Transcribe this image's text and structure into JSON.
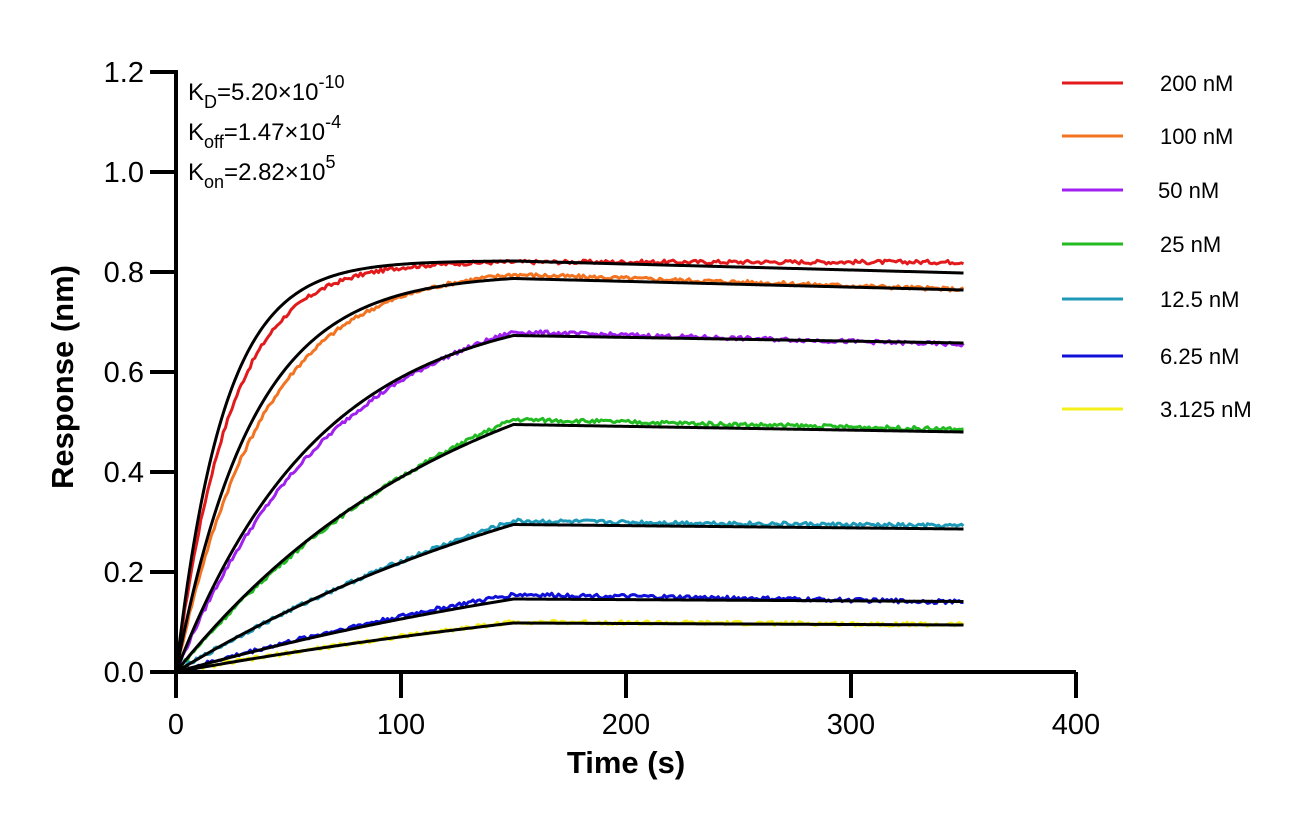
{
  "chart_data": {
    "type": "line",
    "xlabel": "Time (s)",
    "ylabel": "Response (nm)",
    "xlim": [
      0,
      400
    ],
    "ylim": [
      0,
      1.2
    ],
    "x_ticks": [
      0,
      100,
      200,
      300,
      400
    ],
    "y_ticks": [
      0.0,
      0.2,
      0.4,
      0.6,
      0.8,
      1.0,
      1.2
    ],
    "y_tick_labels": [
      "0.0",
      "0.2",
      "0.4",
      "0.6",
      "0.8",
      "1.0",
      "1.2"
    ],
    "x_tick_labels": [
      "0",
      "100",
      "200",
      "300",
      "400"
    ],
    "grid": false,
    "legend_position": "right",
    "annotations": {
      "kd": {
        "base": "K",
        "sub": "D",
        "value": "=5.20×10",
        "exp": "-10"
      },
      "koff": {
        "base": "K",
        "sub": "off",
        "value": "=1.47×10",
        "exp": "-4"
      },
      "kon": {
        "base": "K",
        "sub": "on",
        "value": "=2.82×10",
        "exp": "5"
      }
    },
    "association_end": 150,
    "dissociation_end": 350,
    "fit_color": "#000000",
    "series": [
      {
        "name": "200 nM",
        "color": "#e31a1c",
        "plateau": 0.82,
        "end_value": 0.82,
        "fit_plateau": 0.822,
        "fit_end": 0.798
      },
      {
        "name": "100 nM",
        "color": "#f47320",
        "plateau": 0.795,
        "end_value": 0.765,
        "fit_plateau": 0.787,
        "fit_end": 0.764
      },
      {
        "name": "50 nM",
        "color": "#a020f0",
        "plateau": 0.68,
        "end_value": 0.655,
        "fit_plateau": 0.673,
        "fit_end": 0.658
      },
      {
        "name": "25 nM",
        "color": "#22bb22",
        "plateau": 0.505,
        "end_value": 0.485,
        "fit_plateau": 0.495,
        "fit_end": 0.48
      },
      {
        "name": "12.5 nM",
        "color": "#1e9ab8",
        "plateau": 0.302,
        "end_value": 0.292,
        "fit_plateau": 0.295,
        "fit_end": 0.286
      },
      {
        "name": "6.25 nM",
        "color": "#1010d8",
        "plateau": 0.155,
        "end_value": 0.14,
        "fit_plateau": 0.146,
        "fit_end": 0.141
      },
      {
        "name": "3.125 nM",
        "color": "#f5f01a",
        "plateau": 0.1,
        "end_value": 0.095,
        "fit_plateau": 0.098,
        "fit_end": 0.094
      }
    ]
  }
}
